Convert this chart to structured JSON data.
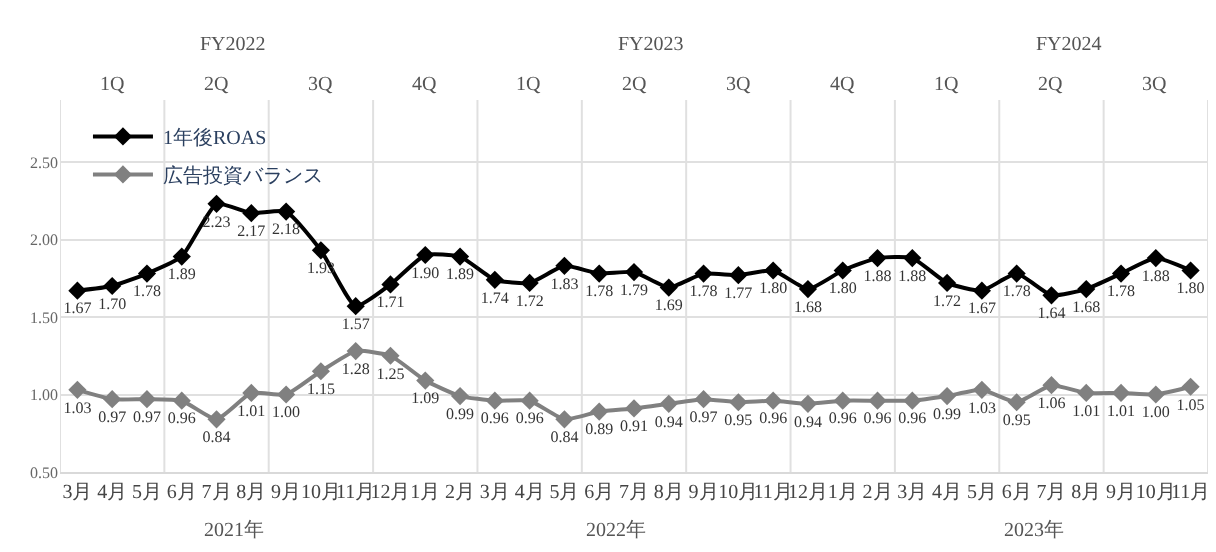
{
  "chart_data": {
    "type": "line",
    "categories": [
      "3月",
      "4月",
      "5月",
      "6月",
      "7月",
      "8月",
      "9月",
      "10月",
      "11月",
      "12月",
      "1月",
      "2月",
      "3月",
      "4月",
      "5月",
      "6月",
      "7月",
      "8月",
      "9月",
      "10月",
      "11月",
      "12月",
      "1月",
      "2月",
      "3月",
      "4月",
      "5月",
      "6月",
      "7月",
      "8月",
      "9月",
      "10月",
      "11月"
    ],
    "series": [
      {
        "name": "1年後ROAS",
        "color": "#000000",
        "values": [
          1.67,
          1.7,
          1.78,
          1.89,
          2.23,
          2.17,
          2.18,
          1.93,
          1.57,
          1.71,
          1.9,
          1.89,
          1.74,
          1.72,
          1.83,
          1.78,
          1.79,
          1.69,
          1.78,
          1.77,
          1.8,
          1.68,
          1.8,
          1.88,
          1.88,
          1.72,
          1.67,
          1.78,
          1.64,
          1.68,
          1.78,
          1.88,
          1.8
        ],
        "value_labels": [
          "1.67",
          "1.70",
          "1.78",
          "1.89",
          "2.23",
          "2.17",
          "2.18",
          "1.93",
          "1.57",
          "1.71",
          "1.90",
          "1.89",
          "1.74",
          "1.72",
          "1.83",
          "1.78",
          "1.79",
          "1.69",
          "1.78",
          "1.77",
          "1.80",
          "1.68",
          "1.80",
          "1.88",
          "1.88",
          "1.72",
          "1.67",
          "1.78",
          "1.64",
          "1.68",
          "1.78",
          "1.88",
          "1.80"
        ]
      },
      {
        "name": "広告投資バランス",
        "color": "#808080",
        "values": [
          1.03,
          0.97,
          0.97,
          0.96,
          0.84,
          1.01,
          1.0,
          1.15,
          1.28,
          1.25,
          1.09,
          0.99,
          0.96,
          0.96,
          0.84,
          0.89,
          0.91,
          0.94,
          0.97,
          0.95,
          0.96,
          0.94,
          0.96,
          0.96,
          0.96,
          0.99,
          1.03,
          0.95,
          1.06,
          1.01,
          1.01,
          1.0,
          1.05
        ],
        "value_labels": [
          "1.03",
          "0.97",
          "0.97",
          "0.96",
          "0.84",
          "1.01",
          "1.00",
          "1.15",
          "1.28",
          "1.25",
          "1.09",
          "0.99",
          "0.96",
          "0.96",
          "0.84",
          "0.89",
          "0.91",
          "0.94",
          "0.97",
          "0.95",
          "0.96",
          "0.94",
          "0.96",
          "0.96",
          "0.96",
          "0.99",
          "1.03",
          "0.95",
          "1.06",
          "1.01",
          "1.01",
          "1.00",
          "1.05"
        ]
      }
    ],
    "ylim": [
      0.5,
      2.9
    ],
    "yticks": [
      {
        "value": 0.5,
        "label": "0.50"
      },
      {
        "value": 1.0,
        "label": "1.00"
      },
      {
        "value": 1.5,
        "label": "1.50"
      },
      {
        "value": 2.0,
        "label": "2.00"
      },
      {
        "value": 2.5,
        "label": "2.50"
      }
    ],
    "annotations": [
      "2021年",
      "2022年",
      "2023年",
      "FY2022",
      "FY2023",
      "FY2024",
      "1Q",
      "2Q",
      "3Q",
      "4Q",
      "1Q",
      "2Q",
      "3Q",
      "4Q",
      "1Q",
      "2Q",
      "3Q"
    ],
    "marker": "diamond",
    "line_style": "solid",
    "grid": "y",
    "legend": "top left"
  }
}
